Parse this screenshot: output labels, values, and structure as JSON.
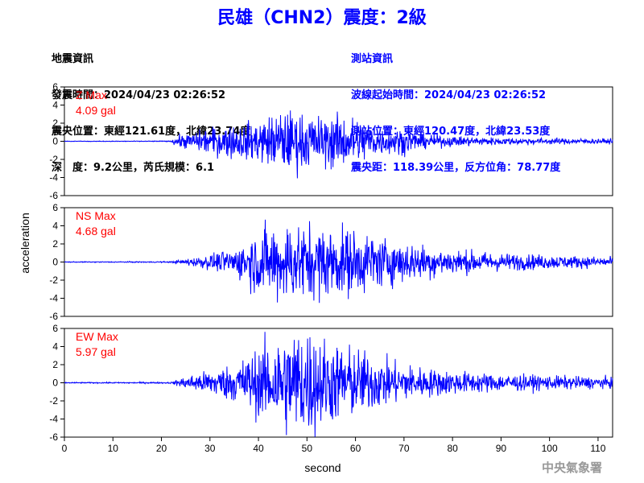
{
  "header": {
    "title": "民雄（CHN2）震度：2級"
  },
  "quake_info": {
    "lines": [
      "地震資訊",
      "發震時間：2024/04/23 02:26:52",
      "震央位置：東經121.61度，北緯23.74度",
      "深　度：9.2公里，芮氏規模：6.1"
    ]
  },
  "station_info": {
    "lines": [
      "測站資訊",
      "波線起始時間：2024/04/23 02:26:52",
      "測站位置：東經120.47度，北緯23.53度",
      "震央距：118.39公里，反方位角：78.77度"
    ]
  },
  "footer": {
    "credit": "中央氣象署"
  },
  "chart_data": {
    "type": "line",
    "xlabel": "second",
    "ylabel": "acceleration",
    "xlim": [
      0,
      113
    ],
    "xticks": [
      0,
      10,
      20,
      30,
      40,
      50,
      60,
      70,
      80,
      90,
      100,
      110
    ],
    "ylim": [
      -6,
      6
    ],
    "yticks": [
      -6,
      -4,
      -2,
      0,
      2,
      4,
      6
    ],
    "series_color": "#0000ff",
    "label_color": "#ff0000",
    "grid": false,
    "panels": [
      {
        "component": "Z",
        "label": "Z Max",
        "max_text": "4.09 gal",
        "max_value": 4.09,
        "envelope": [
          [
            0,
            0.02
          ],
          [
            22,
            0.04
          ],
          [
            23,
            0.5
          ],
          [
            26,
            0.7
          ],
          [
            30,
            1.2
          ],
          [
            35,
            1.5
          ],
          [
            40,
            1.8
          ],
          [
            45,
            2.7
          ],
          [
            48,
            2.6
          ],
          [
            52,
            2.2
          ],
          [
            56,
            2.4
          ],
          [
            60,
            2.1
          ],
          [
            65,
            1.2
          ],
          [
            70,
            1.1
          ],
          [
            75,
            0.6
          ],
          [
            80,
            0.45
          ],
          [
            90,
            0.32
          ],
          [
            100,
            0.28
          ],
          [
            113,
            0.22
          ]
        ]
      },
      {
        "component": "NS",
        "label": "NS Max",
        "max_text": "4.68 gal",
        "max_value": 4.68,
        "envelope": [
          [
            0,
            0.03
          ],
          [
            22,
            0.05
          ],
          [
            25,
            0.25
          ],
          [
            30,
            0.6
          ],
          [
            35,
            1.0
          ],
          [
            40,
            2.6
          ],
          [
            45,
            3.2
          ],
          [
            50,
            3.0
          ],
          [
            55,
            2.8
          ],
          [
            60,
            2.6
          ],
          [
            65,
            2.0
          ],
          [
            70,
            1.6
          ],
          [
            75,
            1.3
          ],
          [
            80,
            1.0
          ],
          [
            90,
            0.7
          ],
          [
            100,
            0.55
          ],
          [
            113,
            0.4
          ]
        ]
      },
      {
        "component": "EW",
        "label": "EW Max",
        "max_text": "5.97 gal",
        "max_value": 5.97,
        "envelope": [
          [
            0,
            0.03
          ],
          [
            22,
            0.05
          ],
          [
            25,
            0.4
          ],
          [
            30,
            0.8
          ],
          [
            35,
            1.2
          ],
          [
            40,
            2.2
          ],
          [
            45,
            3.2
          ],
          [
            50,
            3.6
          ],
          [
            55,
            2.6
          ],
          [
            60,
            2.2
          ],
          [
            65,
            1.6
          ],
          [
            70,
            1.2
          ],
          [
            75,
            0.9
          ],
          [
            80,
            0.75
          ],
          [
            90,
            0.55
          ],
          [
            100,
            0.45
          ],
          [
            113,
            0.35
          ]
        ]
      }
    ]
  }
}
